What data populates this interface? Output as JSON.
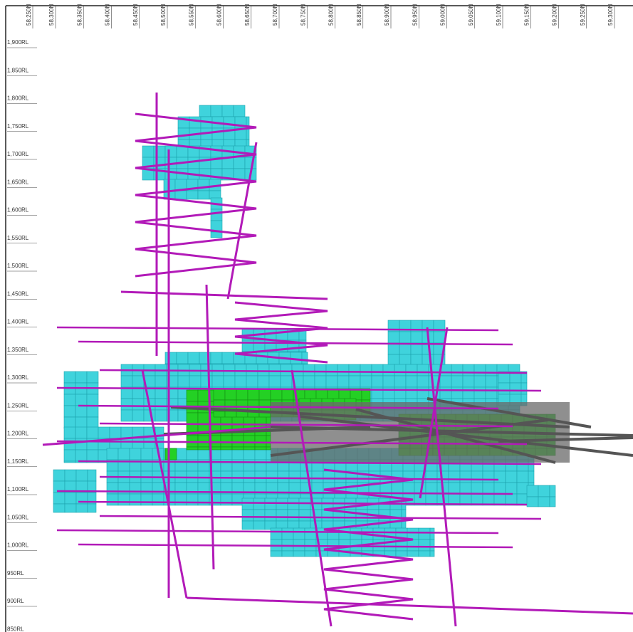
{
  "northings": [
    "58,250N",
    "58,300N",
    "58,350N",
    "58,400N",
    "58,450N",
    "58,500N",
    "58,550N",
    "58,600N",
    "58,650N",
    "58,700N",
    "58,750N",
    "58,800N",
    "58,850N",
    "58,900N",
    "58,950N",
    "59,000N",
    "59,050N",
    "59,100N",
    "59,150N",
    "59,200N",
    "59,250N",
    "59,300N"
  ],
  "elevations": [
    "1,900RL",
    "1,850RL",
    "1,800RL",
    "1,750RL",
    "1,700RL",
    "1,650RL",
    "1,600RL",
    "1,550RL",
    "1,500RL",
    "1,450RL",
    "1,400RL",
    "1,350RL",
    "1,300RL",
    "1,250RL",
    "1,200RL",
    "1,150RL",
    "1,100RL",
    "1,050RL",
    "1,000RL",
    "950RL",
    "900RL",
    "850RL"
  ]
}
